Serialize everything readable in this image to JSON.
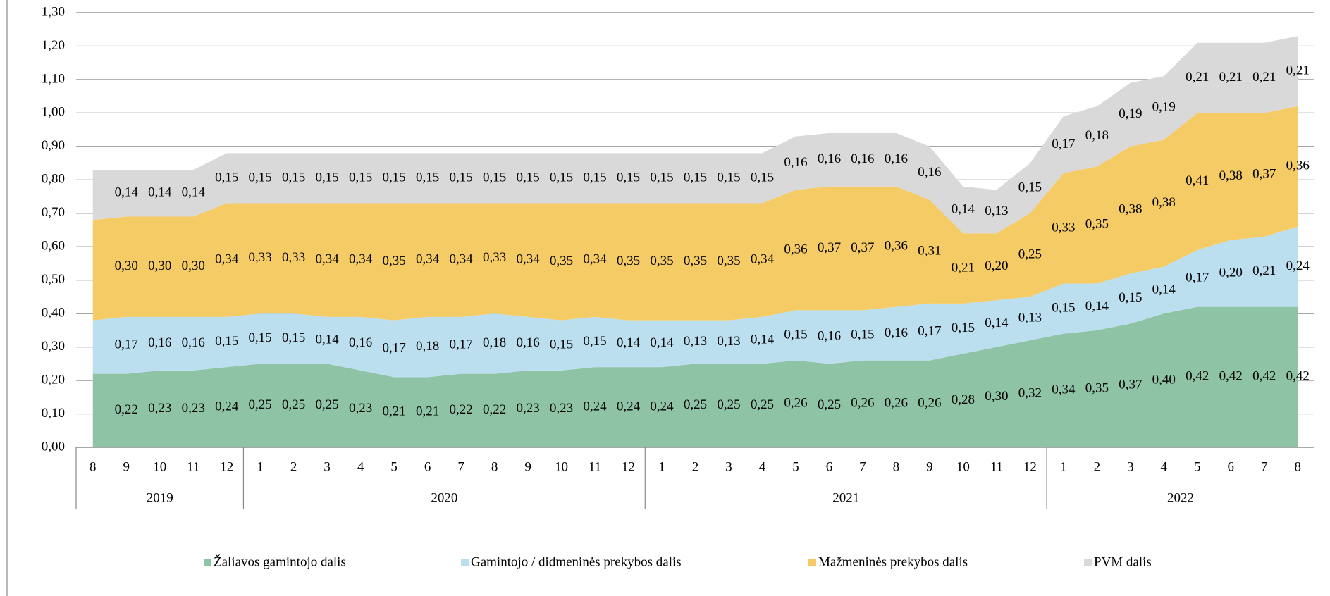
{
  "chart_data": {
    "type": "stacked_area",
    "categories": [
      "8",
      "9",
      "10",
      "11",
      "12",
      "1",
      "2",
      "3",
      "4",
      "5",
      "6",
      "7",
      "8",
      "9",
      "10",
      "11",
      "12",
      "1",
      "2",
      "3",
      "4",
      "5",
      "6",
      "7",
      "8",
      "9",
      "10",
      "11",
      "12",
      "1",
      "2",
      "3",
      "4",
      "5",
      "6",
      "7",
      "8"
    ],
    "x_groups": [
      "2019",
      "2020",
      "2021",
      "2022"
    ],
    "ylim": [
      0,
      1.3
    ],
    "yticks": [
      {
        "value": 0,
        "label": "0,00"
      },
      {
        "value": 0.1,
        "label": "0,10"
      },
      {
        "value": 0.2,
        "label": "0,20"
      },
      {
        "value": 0.3,
        "label": "0,30"
      },
      {
        "value": 0.4,
        "label": "0,40"
      },
      {
        "value": 0.5,
        "label": "0,50"
      },
      {
        "value": 0.6,
        "label": "0,60"
      },
      {
        "value": 0.7,
        "label": "0,70"
      },
      {
        "value": 0.8,
        "label": "0,80"
      },
      {
        "value": 0.9,
        "label": "0,90"
      },
      {
        "value": 1.0,
        "label": "1,00"
      },
      {
        "value": 1.1,
        "label": "1,10"
      },
      {
        "value": 1.2,
        "label": "1,20"
      },
      {
        "value": 1.3,
        "label": "1,30"
      }
    ],
    "grid": true,
    "legend": "bottom",
    "series": [
      {
        "name": "Žaliavos gamintojo dalis",
        "color": "#8fc3a5",
        "values": [
          0.22,
          0.22,
          0.23,
          0.23,
          0.24,
          0.25,
          0.25,
          0.25,
          0.23,
          0.21,
          0.21,
          0.22,
          0.22,
          0.23,
          0.23,
          0.24,
          0.24,
          0.24,
          0.25,
          0.25,
          0.25,
          0.26,
          0.25,
          0.26,
          0.26,
          0.26,
          0.28,
          0.3,
          0.32,
          0.34,
          0.35,
          0.37,
          0.4,
          0.42,
          0.42,
          0.42,
          0.42
        ],
        "value_labels": [
          null,
          "0,22",
          "0,23",
          "0,23",
          "0,24",
          "0,25",
          "0,25",
          "0,25",
          "0,23",
          "0,21",
          "0,21",
          "0,22",
          "0,22",
          "0,23",
          "0,23",
          "0,24",
          "0,24",
          "0,24",
          "0,25",
          "0,25",
          "0,25",
          "0,26",
          "0,25",
          "0,26",
          "0,26",
          "0,26",
          "0,28",
          "0,30",
          "0,32",
          "0,34",
          "0,35",
          "0,37",
          "0,40",
          "0,42",
          "0,42",
          "0,42",
          "0,42"
        ]
      },
      {
        "name": "Gamintojo / didmeninės prekybos dalis",
        "color": "#bcdff0",
        "values": [
          0.16,
          0.17,
          0.16,
          0.16,
          0.15,
          0.15,
          0.15,
          0.14,
          0.16,
          0.17,
          0.18,
          0.17,
          0.18,
          0.16,
          0.15,
          0.15,
          0.14,
          0.14,
          0.13,
          0.13,
          0.14,
          0.15,
          0.16,
          0.15,
          0.16,
          0.17,
          0.15,
          0.14,
          0.13,
          0.15,
          0.14,
          0.15,
          0.14,
          0.17,
          0.2,
          0.21,
          0.24
        ],
        "value_labels": [
          null,
          "0,17",
          "0,16",
          "0,16",
          "0,15",
          "0,15",
          "0,15",
          "0,14",
          "0,16",
          "0,17",
          "0,18",
          "0,17",
          "0,18",
          "0,16",
          "0,15",
          "0,15",
          "0,14",
          "0,14",
          "0,13",
          "0,13",
          "0,14",
          "0,15",
          "0,16",
          "0,15",
          "0,16",
          "0,17",
          "0,15",
          "0,14",
          "0,13",
          "0,15",
          "0,14",
          "0,15",
          "0,14",
          "0,17",
          "0,20",
          "0,21",
          "0,24"
        ]
      },
      {
        "name": "Mažmeninės prekybos dalis",
        "color": "#f5cb66",
        "values": [
          0.3,
          0.3,
          0.3,
          0.3,
          0.34,
          0.33,
          0.33,
          0.34,
          0.34,
          0.35,
          0.34,
          0.34,
          0.33,
          0.34,
          0.35,
          0.34,
          0.35,
          0.35,
          0.35,
          0.35,
          0.34,
          0.36,
          0.37,
          0.37,
          0.36,
          0.31,
          0.21,
          0.2,
          0.25,
          0.33,
          0.35,
          0.38,
          0.38,
          0.41,
          0.38,
          0.37,
          0.36
        ],
        "value_labels": [
          null,
          "0,30",
          "0,30",
          "0,30",
          "0,34",
          "0,33",
          "0,33",
          "0,34",
          "0,34",
          "0,35",
          "0,34",
          "0,34",
          "0,33",
          "0,34",
          "0,35",
          "0,34",
          "0,35",
          "0,35",
          "0,35",
          "0,35",
          "0,34",
          "0,36",
          "0,37",
          "0,37",
          "0,36",
          "0,31",
          "0,21",
          "0,20",
          "0,25",
          "0,33",
          "0,35",
          "0,38",
          "0,38",
          "0,41",
          "0,38",
          "0,37",
          "0,36"
        ]
      },
      {
        "name": "PVM dalis",
        "color": "#d9d9d9",
        "values": [
          0.15,
          0.14,
          0.14,
          0.14,
          0.15,
          0.15,
          0.15,
          0.15,
          0.15,
          0.15,
          0.15,
          0.15,
          0.15,
          0.15,
          0.15,
          0.15,
          0.15,
          0.15,
          0.15,
          0.15,
          0.15,
          0.16,
          0.16,
          0.16,
          0.16,
          0.16,
          0.14,
          0.13,
          0.15,
          0.17,
          0.18,
          0.19,
          0.19,
          0.21,
          0.21,
          0.21,
          0.21
        ],
        "value_labels": [
          null,
          "0,14",
          "0,14",
          "0,14",
          "0,15",
          "0,15",
          "0,15",
          "0,15",
          "0,15",
          "0,15",
          "0,15",
          "0,15",
          "0,15",
          "0,15",
          "0,15",
          "0,15",
          "0,15",
          "0,15",
          "0,15",
          "0,15",
          "0,15",
          "0,16",
          "0,16",
          "0,16",
          "0,16",
          "0,16",
          "0,14",
          "0,13",
          "0,15",
          "0,17",
          "0,18",
          "0,19",
          "0,19",
          "0,21",
          "0,21",
          "0,21",
          "0,21"
        ]
      }
    ]
  }
}
